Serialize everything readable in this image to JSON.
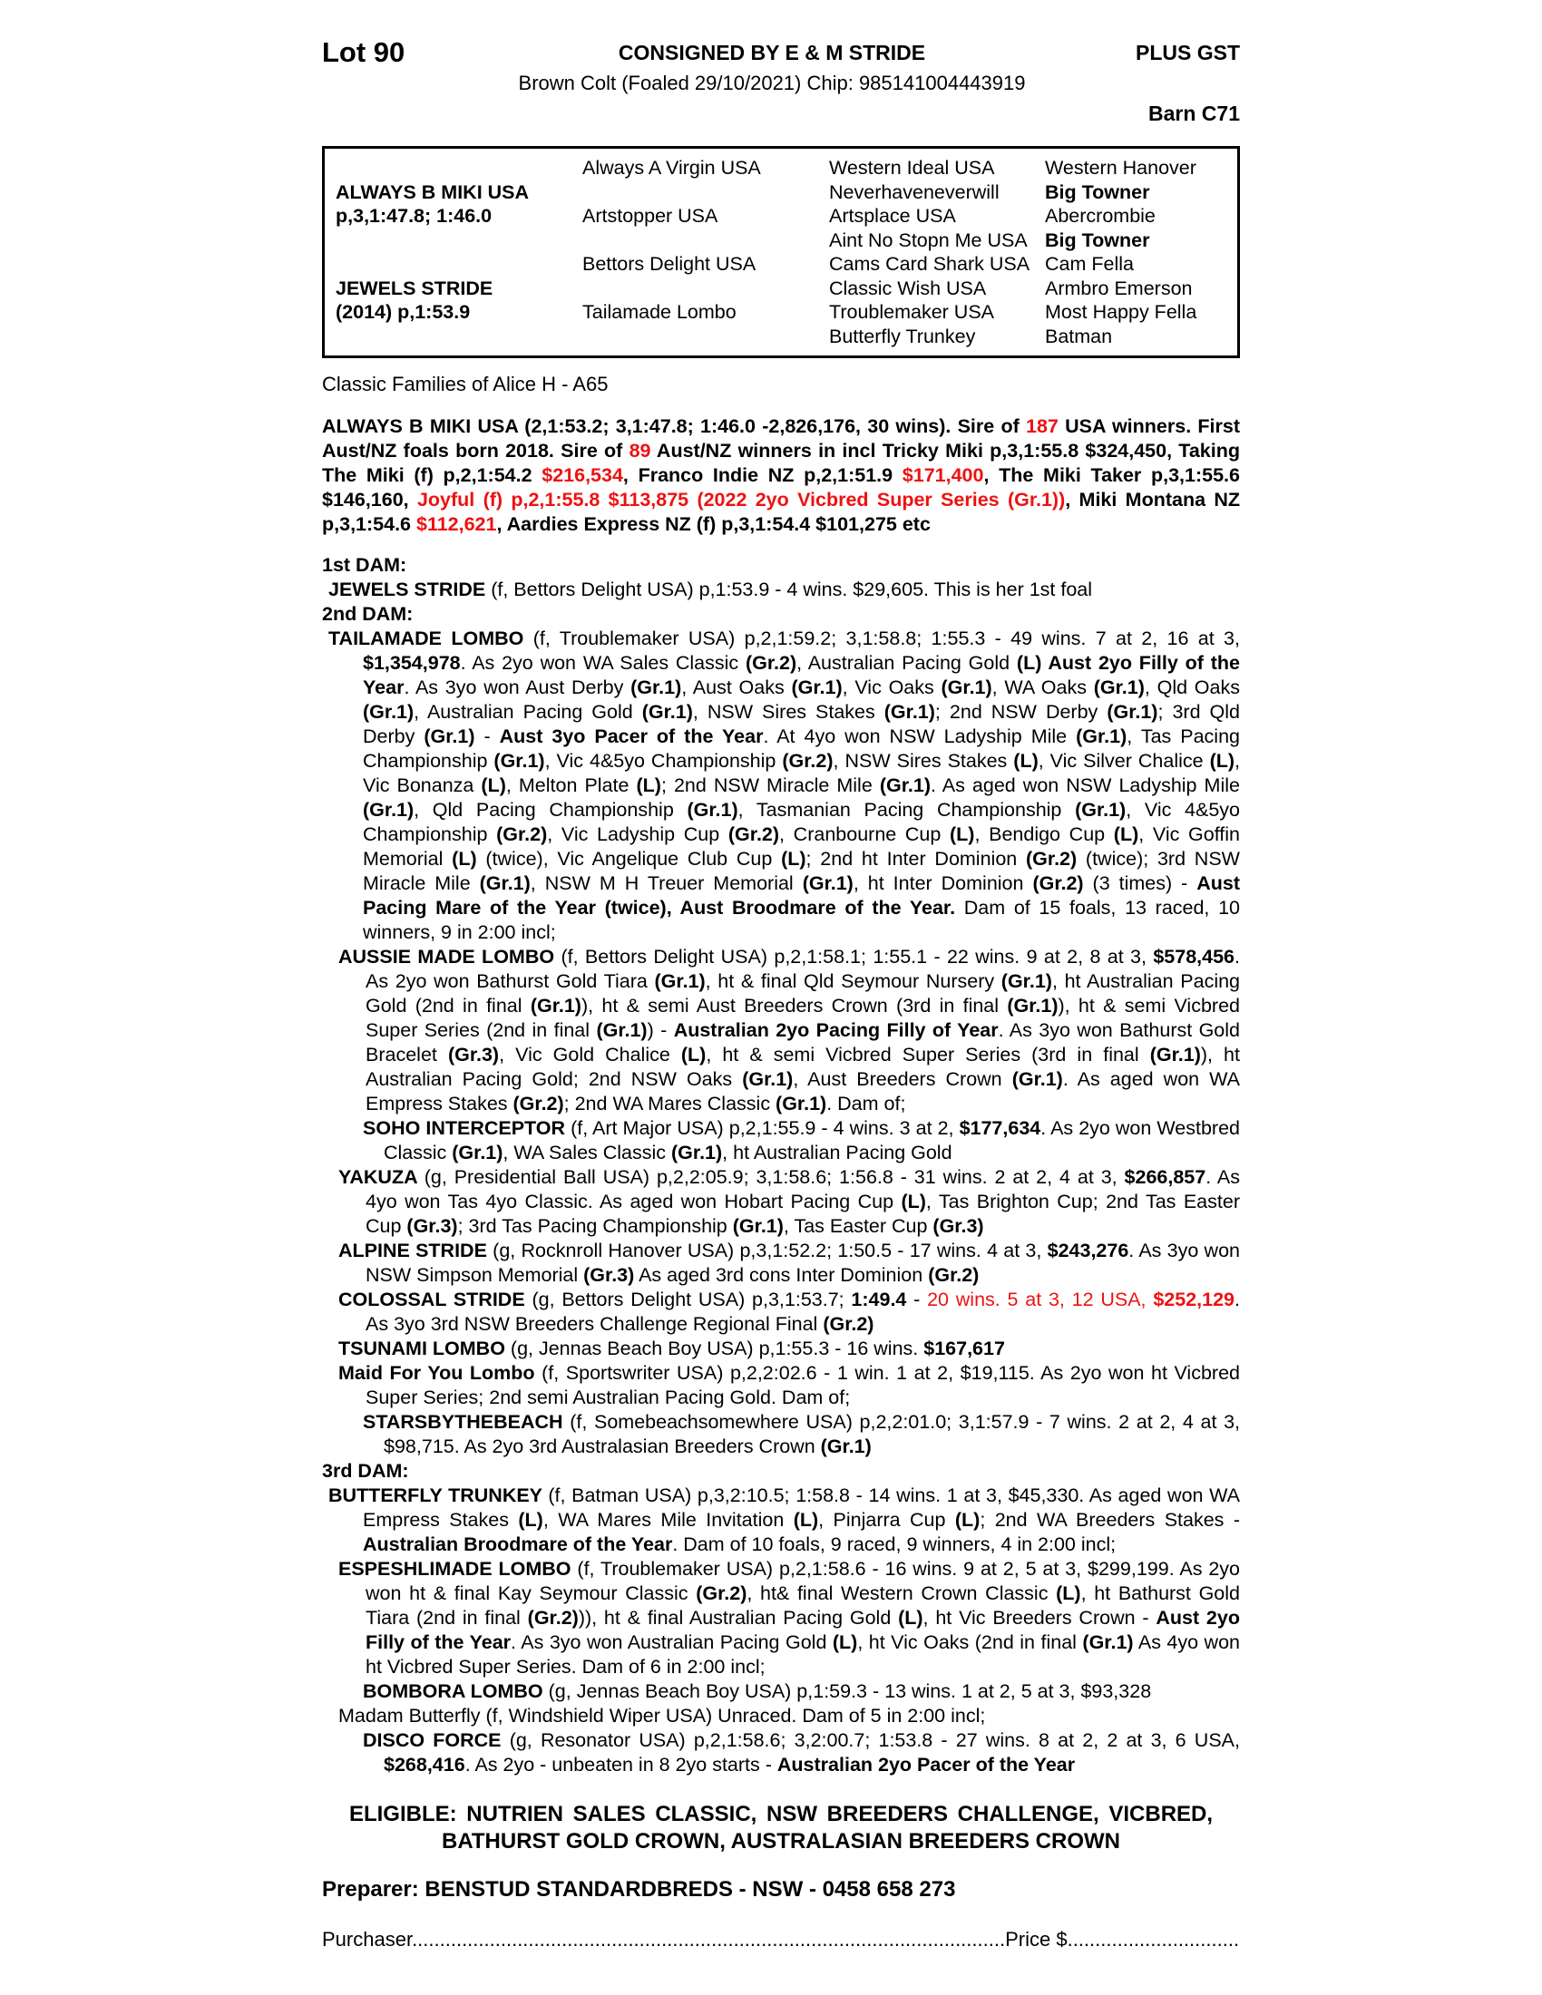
{
  "colors": {
    "accent_red": "#ee1111",
    "text": "#000000",
    "background": "#ffffff"
  },
  "header": {
    "lot": "Lot 90",
    "consigned": "CONSIGNED BY E & M STRIDE",
    "plus_gst": "PLUS GST",
    "foal_info": "Brown Colt (Foaled 29/10/2021) Chip: 985141004443919",
    "barn": "Barn C71"
  },
  "pedigree": {
    "rows": [
      [
        [
          "",
          0
        ],
        [
          "Always A Virgin USA",
          0
        ],
        [
          "Western Ideal USA",
          0
        ],
        [
          "Western Hanover",
          0
        ]
      ],
      [
        [
          "ALWAYS B MIKI USA",
          1
        ],
        [
          "",
          0
        ],
        [
          "Neverhaveneverwill",
          0
        ],
        [
          "Big Towner",
          1
        ]
      ],
      [
        [
          "p,3,1:47.8; 1:46.0",
          1
        ],
        [
          "Artstopper USA",
          0
        ],
        [
          "Artsplace USA",
          0
        ],
        [
          "Abercrombie",
          0
        ]
      ],
      [
        [
          "",
          0
        ],
        [
          "",
          0
        ],
        [
          "Aint No Stopn Me USA",
          0
        ],
        [
          "Big Towner",
          1
        ]
      ],
      [
        [
          "",
          0
        ],
        [
          "Bettors Delight USA",
          0
        ],
        [
          "Cams Card Shark USA",
          0
        ],
        [
          "Cam Fella",
          0
        ]
      ],
      [
        [
          "JEWELS STRIDE",
          1
        ],
        [
          "",
          0
        ],
        [
          "Classic Wish USA",
          0
        ],
        [
          "Armbro Emerson",
          0
        ]
      ],
      [
        [
          "(2014) p,1:53.9",
          1
        ],
        [
          "Tailamade Lombo",
          0
        ],
        [
          "Troublemaker USA",
          0
        ],
        [
          "Most Happy Fella",
          0
        ]
      ],
      [
        [
          "",
          0
        ],
        [
          "",
          0
        ],
        [
          "Butterfly Trunkey",
          0
        ],
        [
          "Batman",
          0
        ]
      ]
    ]
  },
  "family_line": "Classic Families of Alice H - A65",
  "headings": {
    "dam1": "1st DAM:",
    "dam2": "2nd DAM:",
    "dam3": "3rd DAM:"
  },
  "paragraphs": {
    "sire": [
      [
        "b",
        "ALWAYS B MIKI USA (2,1:53.2; 3,1:47.8; 1:46.0 -2,826,176, 30 wins). Sire of "
      ],
      [
        "r",
        "187"
      ],
      [
        "b",
        " USA winners. First Aust/NZ foals born 2018. Sire of "
      ],
      [
        "r",
        "89"
      ],
      [
        "b",
        " Aust/NZ winners in incl Tricky Miki p,3,1:55.8 $324,450, Taking The Miki (f) p,2,1:54.2 "
      ],
      [
        "r",
        "$216,534"
      ],
      [
        "b",
        ", Franco Indie NZ p,2,1:51.9 "
      ],
      [
        "r",
        "$171,400"
      ],
      [
        "b",
        ", The Miki Taker p,3,1:55.6 $146,160, "
      ],
      [
        "r",
        "Joyful (f) p,2,1:55.8 $113,875 (2022 2yo Vicbred Super Series (Gr.1))"
      ],
      [
        "b",
        ", Miki Montana NZ p,3,1:54.6 "
      ],
      [
        "r",
        "$112,621"
      ],
      [
        "b",
        ", Aardies Express NZ (f) p,3,1:54.4 $101,275 etc"
      ]
    ],
    "jewels_stride": [
      [
        "b",
        "JEWELS STRIDE "
      ],
      [
        "n",
        "(f, Bettors Delight USA) p,1:53.9 - 4 wins. $29,605. This is her 1st foal"
      ]
    ],
    "tailamade_lombo": [
      [
        "b",
        "TAILAMADE LOMBO "
      ],
      [
        "n",
        "(f, Troublemaker USA) p,2,1:59.2; 3,1:58.8; 1:55.3 - 49 wins. 7 at 2, 16 at 3, "
      ],
      [
        "b",
        "$1,354,978"
      ],
      [
        "n",
        ". As 2yo won WA Sales Classic "
      ],
      [
        "b",
        "(Gr.2)"
      ],
      [
        "n",
        ", Australian Pacing Gold "
      ],
      [
        "b",
        "(L) Aust 2yo Filly of the Year"
      ],
      [
        "n",
        ". As 3yo won Aust Derby "
      ],
      [
        "b",
        "(Gr.1)"
      ],
      [
        "n",
        ", Aust Oaks "
      ],
      [
        "b",
        "(Gr.1)"
      ],
      [
        "n",
        ", Vic Oaks "
      ],
      [
        "b",
        "(Gr.1)"
      ],
      [
        "n",
        ", WA Oaks "
      ],
      [
        "b",
        "(Gr.1)"
      ],
      [
        "n",
        ", Qld Oaks "
      ],
      [
        "b",
        "(Gr.1)"
      ],
      [
        "n",
        ", Australian Pacing Gold "
      ],
      [
        "b",
        "(Gr.1)"
      ],
      [
        "n",
        ", NSW Sires Stakes "
      ],
      [
        "b",
        "(Gr.1)"
      ],
      [
        "n",
        "; 2nd NSW Derby "
      ],
      [
        "b",
        "(Gr.1)"
      ],
      [
        "n",
        "; 3rd Qld Derby "
      ],
      [
        "b",
        "(Gr.1)"
      ],
      [
        "n",
        " - "
      ],
      [
        "b",
        "Aust 3yo Pacer of the Year"
      ],
      [
        "n",
        ". At 4yo won NSW Ladyship Mile "
      ],
      [
        "b",
        "(Gr.1)"
      ],
      [
        "n",
        ", Tas Pacing Championship "
      ],
      [
        "b",
        "(Gr.1)"
      ],
      [
        "n",
        ", Vic 4&5yo Championship "
      ],
      [
        "b",
        "(Gr.2)"
      ],
      [
        "n",
        ", NSW Sires Stakes "
      ],
      [
        "b",
        "(L)"
      ],
      [
        "n",
        ", Vic Silver Chalice "
      ],
      [
        "b",
        "(L)"
      ],
      [
        "n",
        ", Vic Bonanza "
      ],
      [
        "b",
        "(L)"
      ],
      [
        "n",
        ", Melton Plate "
      ],
      [
        "b",
        "(L)"
      ],
      [
        "n",
        "; 2nd NSW Miracle Mile "
      ],
      [
        "b",
        "(Gr.1)"
      ],
      [
        "n",
        ". As aged won NSW Ladyship Mile "
      ],
      [
        "b",
        "(Gr.1)"
      ],
      [
        "n",
        ", Qld Pacing Championship "
      ],
      [
        "b",
        "(Gr.1)"
      ],
      [
        "n",
        ", Tasmanian Pacing Championship "
      ],
      [
        "b",
        "(Gr.1)"
      ],
      [
        "n",
        ", Vic 4&5yo Championship "
      ],
      [
        "b",
        "(Gr.2)"
      ],
      [
        "n",
        ", Vic Ladyship Cup "
      ],
      [
        "b",
        "(Gr.2)"
      ],
      [
        "n",
        ", Cranbourne Cup "
      ],
      [
        "b",
        "(L)"
      ],
      [
        "n",
        ", Bendigo Cup "
      ],
      [
        "b",
        "(L)"
      ],
      [
        "n",
        ", Vic Goffin Memorial "
      ],
      [
        "b",
        "(L)"
      ],
      [
        "n",
        " (twice), Vic Angelique Club Cup "
      ],
      [
        "b",
        "(L)"
      ],
      [
        "n",
        "; 2nd ht Inter Dominion "
      ],
      [
        "b",
        "(Gr.2)"
      ],
      [
        "n",
        " (twice); 3rd NSW Miracle Mile "
      ],
      [
        "b",
        "(Gr.1)"
      ],
      [
        "n",
        ", NSW M H Treuer Memorial "
      ],
      [
        "b",
        "(Gr.1)"
      ],
      [
        "n",
        ", ht Inter Dominion "
      ],
      [
        "b",
        "(Gr.2)"
      ],
      [
        "n",
        " (3 times) - "
      ],
      [
        "b",
        "Aust Pacing Mare of the Year (twice), Aust Broodmare of the Year."
      ],
      [
        "n",
        " Dam of 15 foals, 13 raced, 10 winners, 9 in 2:00 incl;"
      ]
    ],
    "aussie_made_lombo": [
      [
        "b",
        "AUSSIE MADE LOMBO "
      ],
      [
        "n",
        "(f, Bettors Delight USA) p,2,1:58.1; 1:55.1 - 22 wins. 9 at 2, 8 at 3, "
      ],
      [
        "b",
        "$578,456"
      ],
      [
        "n",
        ". As 2yo won Bathurst Gold Tiara "
      ],
      [
        "b",
        "(Gr.1)"
      ],
      [
        "n",
        ",  ht & final Qld Seymour Nursery "
      ],
      [
        "b",
        "(Gr.1)"
      ],
      [
        "n",
        ", ht Australian Pacing Gold (2nd in final "
      ],
      [
        "b",
        "(Gr.1)"
      ],
      [
        "n",
        "), ht & semi Aust Breeders Crown (3rd in final "
      ],
      [
        "b",
        "(Gr.1)"
      ],
      [
        "n",
        "), ht & semi Vicbred Super Series (2nd in final "
      ],
      [
        "b",
        "(Gr.1)"
      ],
      [
        "n",
        ") - "
      ],
      [
        "b",
        "Australian 2yo Pacing Filly of Year"
      ],
      [
        "n",
        ". As 3yo won Bathurst Gold Bracelet "
      ],
      [
        "b",
        "(Gr.3)"
      ],
      [
        "n",
        ", Vic Gold Chalice "
      ],
      [
        "b",
        "(L)"
      ],
      [
        "n",
        ", ht & semi Vicbred Super Series (3rd in final "
      ],
      [
        "b",
        "(Gr.1)"
      ],
      [
        "n",
        "), ht Australian Pacing Gold; 2nd NSW Oaks "
      ],
      [
        "b",
        "(Gr.1)"
      ],
      [
        "n",
        ", Aust Breeders Crown "
      ],
      [
        "b",
        "(Gr.1)"
      ],
      [
        "n",
        ". As aged won WA Empress Stakes "
      ],
      [
        "b",
        "(Gr.2)"
      ],
      [
        "n",
        "; 2nd WA Mares Classic "
      ],
      [
        "b",
        "(Gr.1)"
      ],
      [
        "n",
        ". Dam of;"
      ]
    ],
    "soho_interceptor": [
      [
        "b",
        "SOHO INTERCEPTOR "
      ],
      [
        "n",
        "(f, Art Major USA) p,2,1:55.9 - 4 wins. 3 at 2, "
      ],
      [
        "b",
        "$177,634"
      ],
      [
        "n",
        ". As 2yo won Westbred Classic "
      ],
      [
        "b",
        "(Gr.1)"
      ],
      [
        "n",
        ", WA Sales Classic "
      ],
      [
        "b",
        "(Gr.1)"
      ],
      [
        "n",
        ", ht Australian Pacing Gold"
      ]
    ],
    "yakuza": [
      [
        "b",
        "YAKUZA "
      ],
      [
        "n",
        "(g, Presidential Ball USA) p,2,2:05.9; 3,1:58.6; 1:56.8 - 31 wins. 2 at 2, 4 at 3, "
      ],
      [
        "b",
        "$266,857"
      ],
      [
        "n",
        ". As 4yo won Tas 4yo Classic. As aged won Hobart Pacing Cup "
      ],
      [
        "b",
        "(L)"
      ],
      [
        "n",
        ", Tas Brighton Cup; 2nd Tas Easter Cup "
      ],
      [
        "b",
        "(Gr.3)"
      ],
      [
        "n",
        "; 3rd Tas Pacing Championship "
      ],
      [
        "b",
        "(Gr.1)"
      ],
      [
        "n",
        ", Tas Easter Cup "
      ],
      [
        "b",
        "(Gr.3)"
      ]
    ],
    "alpine_stride": [
      [
        "b",
        "ALPINE STRIDE "
      ],
      [
        "n",
        "(g, Rocknroll Hanover USA) p,3,1:52.2; 1:50.5 - 17 wins. 4 at 3, "
      ],
      [
        "b",
        "$243,276"
      ],
      [
        "n",
        ". As 3yo won NSW Simpson Memorial "
      ],
      [
        "b",
        "(Gr.3)"
      ],
      [
        "n",
        " As aged 3rd cons Inter Dominion "
      ],
      [
        "b",
        "(Gr.2)"
      ]
    ],
    "colossal_stride": [
      [
        "b",
        "COLOSSAL STRIDE "
      ],
      [
        "n",
        "(g, Bettors Delight USA) p,3,1:53.7; "
      ],
      [
        "b",
        "1:49.4"
      ],
      [
        "n",
        " - "
      ],
      [
        "rn",
        "20 wins. 5 at 3, 12 USA, "
      ],
      [
        "r",
        "$252,129"
      ],
      [
        "n",
        ". As 3yo 3rd NSW Breeders Challenge Regional Final "
      ],
      [
        "b",
        "(Gr.2)"
      ]
    ],
    "tsunami_lombo": [
      [
        "b",
        "TSUNAMI LOMBO "
      ],
      [
        "n",
        "(g, Jennas Beach Boy USA) p,1:55.3 - 16 wins. "
      ],
      [
        "b",
        "$167,617"
      ]
    ],
    "maid_for_you_lombo": [
      [
        "b",
        "Maid For You Lombo "
      ],
      [
        "n",
        "(f, Sportswriter USA) p,2,2:02.6 - 1 win. 1 at 2, $19,115. As 2yo won ht Vicbred Super Series; 2nd semi Australian Pacing Gold. Dam of;"
      ]
    ],
    "starsbythebeach": [
      [
        "b",
        "STARSBYTHEBEACH "
      ],
      [
        "n",
        "(f, Somebeachsomewhere USA) p,2,2:01.0; 3,1:57.9 - 7 wins. 2 at 2, 4 at 3, $98,715. As 2yo 3rd Australasian Breeders Crown "
      ],
      [
        "b",
        "(Gr.1)"
      ]
    ],
    "butterfly_trunkey": [
      [
        "b",
        "BUTTERFLY TRUNKEY "
      ],
      [
        "n",
        "(f, Batman USA) p,3,2:10.5; 1:58.8 - 14 wins. 1 at 3, $45,330. As aged won WA Empress Stakes "
      ],
      [
        "b",
        "(L)"
      ],
      [
        "n",
        ", WA Mares Mile Invitation "
      ],
      [
        "b",
        "(L)"
      ],
      [
        "n",
        ", Pinjarra Cup "
      ],
      [
        "b",
        "(L)"
      ],
      [
        "n",
        "; 2nd WA Breeders Stakes - "
      ],
      [
        "b",
        "Australian Broodmare of the Year"
      ],
      [
        "n",
        ". Dam of 10 foals, 9 raced, 9 winners, 4 in 2:00 incl;"
      ]
    ],
    "espeshlimade_lombo": [
      [
        "b",
        "ESPESHLIMADE LOMBO "
      ],
      [
        "n",
        "(f, Troublemaker USA) p,2,1:58.6 - 16 wins. 9 at 2, 5 at 3, $299,199. As 2yo won ht & final Kay Seymour Classic "
      ],
      [
        "b",
        "(Gr.2)"
      ],
      [
        "n",
        ", ht& final Western Crown Classic "
      ],
      [
        "b",
        "(L)"
      ],
      [
        "n",
        ", ht Bathurst Gold Tiara (2nd in final "
      ],
      [
        "b",
        "(Gr.2)"
      ],
      [
        "n",
        ")), ht & final Australian Pacing Gold "
      ],
      [
        "b",
        "(L)"
      ],
      [
        "n",
        ", ht Vic Breeders Crown - "
      ],
      [
        "b",
        "Aust 2yo Filly of the Year"
      ],
      [
        "n",
        ". As 3yo won Australian Pacing Gold "
      ],
      [
        "b",
        "(L)"
      ],
      [
        "n",
        ", ht Vic Oaks (2nd in final "
      ],
      [
        "b",
        "(Gr.1)"
      ],
      [
        "n",
        " As 4yo won ht Vicbred Super Series. Dam of 6 in 2:00 incl;"
      ]
    ],
    "bombora_lombo": [
      [
        "b",
        "BOMBORA LOMBO "
      ],
      [
        "n",
        "(g, Jennas Beach Boy USA) p,1:59.3 - 13 wins. 1 at 2, 5 at 3, $93,328"
      ]
    ],
    "madam_butterfly": [
      [
        "n",
        "Madam Butterfly (f, Windshield Wiper USA) Unraced. Dam of 5 in 2:00 incl;"
      ]
    ],
    "disco_force": [
      [
        "b",
        "DISCO FORCE "
      ],
      [
        "n",
        "(g, Resonator USA) p,2,1:58.6; 3,2:00.7; 1:53.8 - 27 wins. 8 at 2, 2 at 3, 6 USA, "
      ],
      [
        "b",
        "$268,416"
      ],
      [
        "n",
        ". As 2yo - unbeaten in 8 2yo starts - "
      ],
      [
        "b",
        "Australian 2yo Pacer of the Year"
      ]
    ]
  },
  "eligible": {
    "line1": "ELIGIBLE: NUTRIEN SALES CLASSIC, NSW BREEDERS CHALLENGE, VICBRED,",
    "line2": "BATHURST GOLD CROWN, AUSTRALASIAN BREEDERS CROWN"
  },
  "preparer": "Preparer: BENSTUD STANDARDBREDS - NSW - 0458 658 273",
  "purchaser": {
    "label": "Purchaser",
    "dots1": "...........................................................................................................",
    "price_label": "Price $",
    "dots2": "....................................."
  }
}
